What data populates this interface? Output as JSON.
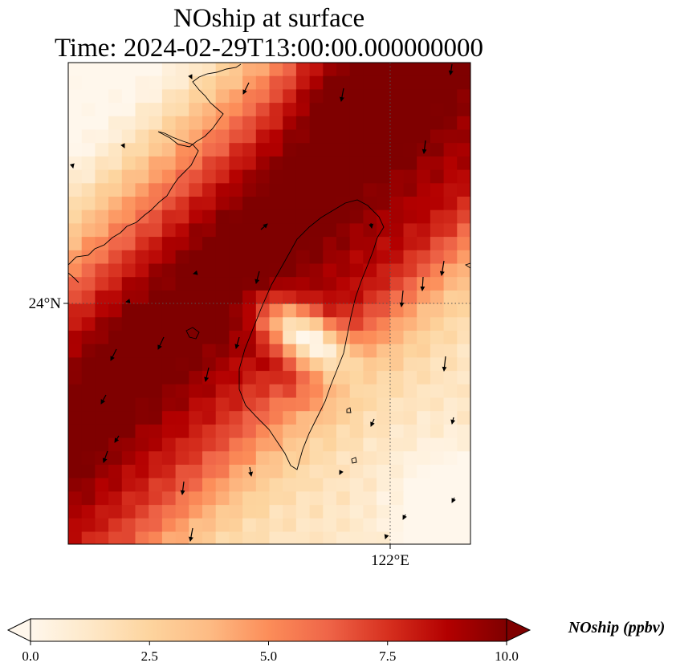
{
  "title": {
    "line1": "NOship at surface",
    "line2": "Time: 2024-02-29T13:00:00.000000000"
  },
  "map": {
    "region": "Taiwan and surrounding sea",
    "lat_tick_label": "24°N",
    "lon_tick_label": "122°E",
    "gridlines": "dotted",
    "field_description": "NOship concentration field shown as colored pixels with wind vectors overlaid; maximum band runs SW-NE through Taiwan Strait, low values over central Taiwan"
  },
  "colorbar": {
    "label": "NOship (ppbv)",
    "ticks": [
      "0.0",
      "2.5",
      "5.0",
      "7.5",
      "10.0"
    ],
    "min": 0.0,
    "max": 10.0,
    "extend": "both",
    "colormap": "OrRd",
    "colors": [
      "#fff7ec",
      "#fee8c8",
      "#fdd49e",
      "#fdbb84",
      "#fc8d59",
      "#ef6548",
      "#d7301f",
      "#b30000",
      "#7f0000"
    ]
  }
}
